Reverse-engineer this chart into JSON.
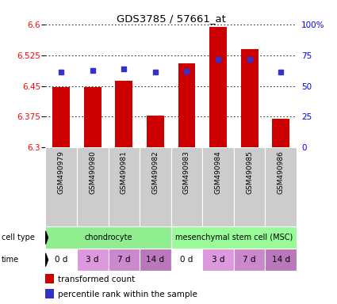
{
  "title": "GDS3785 / 57661_at",
  "samples": [
    "GSM490979",
    "GSM490980",
    "GSM490981",
    "GSM490982",
    "GSM490983",
    "GSM490984",
    "GSM490985",
    "GSM490986"
  ],
  "transformed_count": [
    6.448,
    6.448,
    6.462,
    6.378,
    6.505,
    6.595,
    6.54,
    6.37
  ],
  "percentile_rank_pct": [
    61.5,
    62.5,
    64.0,
    61.5,
    62.0,
    72.0,
    72.0,
    61.5
  ],
  "ylim_left": [
    6.3,
    6.6
  ],
  "yticks_left": [
    6.3,
    6.375,
    6.45,
    6.525,
    6.6
  ],
  "yticks_right": [
    0,
    25,
    50,
    75,
    100
  ],
  "cell_type_groups": [
    {
      "label": "chondrocyte",
      "start": 0,
      "end": 4,
      "color": "#90EE90"
    },
    {
      "label": "mesenchymal stem cell (MSC)",
      "start": 4,
      "end": 8,
      "color": "#98FB98"
    }
  ],
  "time_labels": [
    "0 d",
    "3 d",
    "7 d",
    "14 d",
    "0 d",
    "3 d",
    "7 d",
    "14 d"
  ],
  "time_colors": [
    "#FFFFFF",
    "#DD99DD",
    "#CC88CC",
    "#BB77BB",
    "#FFFFFF",
    "#DD99DD",
    "#CC88CC",
    "#BB77BB"
  ],
  "bar_color": "#CC0000",
  "dot_color": "#3333CC",
  "bar_bottom": 6.3,
  "sample_bg_color": "#CCCCCC",
  "fig_width": 4.25,
  "fig_height": 3.84,
  "dpi": 100
}
